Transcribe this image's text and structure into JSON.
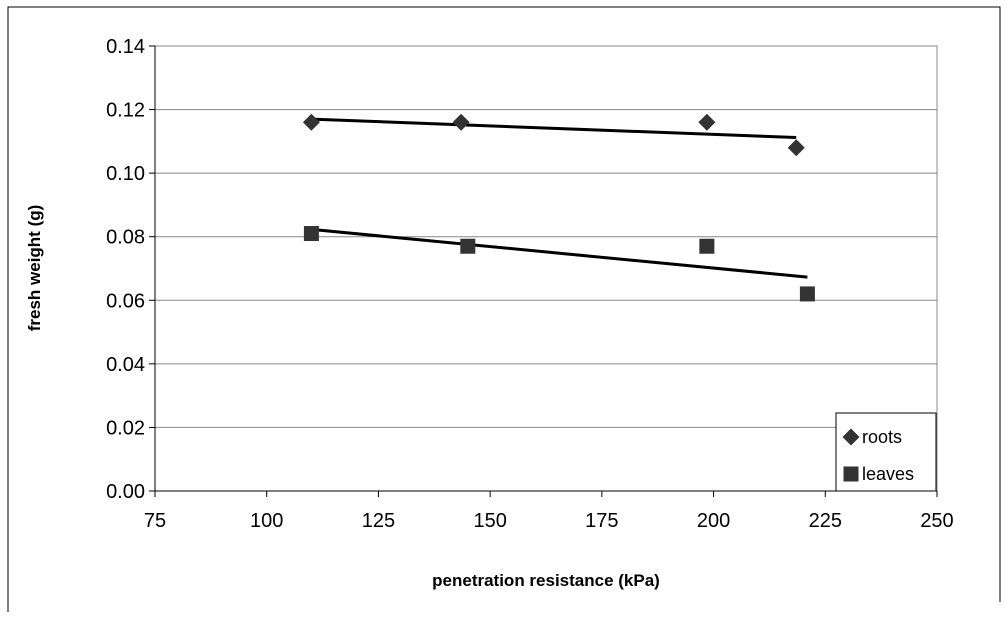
{
  "chart_data": {
    "type": "scatter",
    "title": "",
    "xlabel": "penetration resistance (kPa)",
    "ylabel": "fresh weight (g)",
    "xlim": [
      75,
      250
    ],
    "ylim": [
      0,
      0.14
    ],
    "x_ticks": [
      "75",
      "100",
      "125",
      "150",
      "175",
      "200",
      "225",
      "250"
    ],
    "y_ticks": [
      "0.00",
      "0.02",
      "0.04",
      "0.06",
      "0.08",
      "0.10",
      "0.12",
      "0.14"
    ],
    "grid": "horizontal",
    "legend_position": "bottom-right",
    "series": [
      {
        "name": "roots",
        "marker": "diamond",
        "color": "#333333",
        "x": [
          110,
          143.5,
          198.5,
          218.5
        ],
        "y": [
          0.116,
          0.116,
          0.116,
          0.108
        ],
        "trendline": {
          "x": [
            110,
            218.5
          ],
          "y": [
            0.117,
            0.1112
          ]
        }
      },
      {
        "name": "leaves",
        "marker": "square",
        "color": "#333333",
        "x": [
          110,
          145,
          198.5,
          221
        ],
        "y": [
          0.081,
          0.077,
          0.077,
          0.062
        ],
        "trendline": {
          "x": [
            110,
            221
          ],
          "y": [
            0.0823,
            0.0673
          ]
        }
      }
    ]
  }
}
